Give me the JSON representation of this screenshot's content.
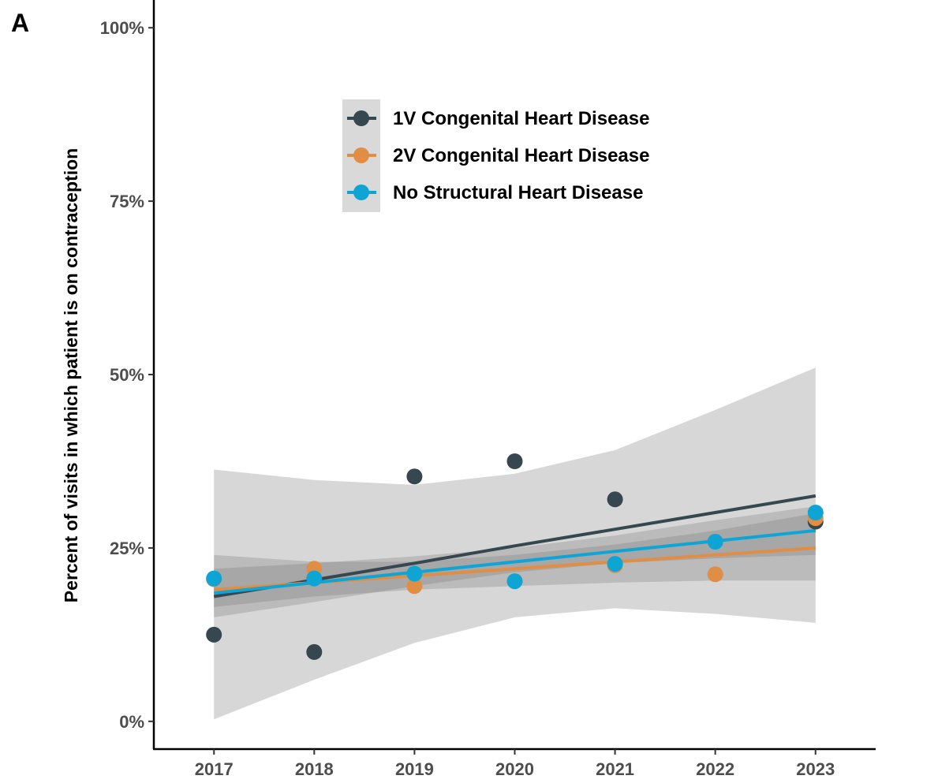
{
  "panel_label": "A",
  "chart_data": {
    "type": "scatter",
    "title": "",
    "xlabel": "",
    "ylabel": "Percent of visits in which patient is on contraception",
    "x": [
      2017,
      2018,
      2019,
      2020,
      2021,
      2022,
      2023
    ],
    "x_tick_labels": [
      "2017",
      "2018",
      "2019",
      "2020",
      "2021",
      "2022",
      "2023"
    ],
    "xlim": [
      2016.4,
      2023.6
    ],
    "ylim": [
      -0.04,
      1.04
    ],
    "y_ticks": [
      0,
      0.25,
      0.5,
      0.75,
      1.0
    ],
    "y_tick_labels": [
      "0%",
      "25%",
      "50%",
      "75%",
      "100%"
    ],
    "grid": false,
    "legend_position": "top-center",
    "series": [
      {
        "name": "1V Congenital Heart Disease",
        "color": "#37474f",
        "values": [
          0.125,
          0.1,
          0.353,
          0.375,
          0.32,
          null,
          0.288
        ],
        "trend": [
          0.18,
          0.204,
          0.228,
          0.253,
          0.277,
          0.301,
          0.325
        ],
        "ci_lower": [
          0.003,
          0.06,
          0.113,
          0.15,
          0.163,
          0.155,
          0.142
        ],
        "ci_upper": [
          0.363,
          0.348,
          0.341,
          0.357,
          0.391,
          0.449,
          0.51
        ]
      },
      {
        "name": "2V Congenital Heart Disease",
        "color": "#e08e45",
        "values": [
          0.205,
          0.22,
          0.195,
          0.202,
          0.225,
          0.212,
          0.293
        ],
        "trend": [
          0.19,
          0.2,
          0.21,
          0.22,
          0.23,
          0.24,
          0.25
        ],
        "ci_lower": [
          0.165,
          0.18,
          0.19,
          0.195,
          0.2,
          0.203,
          0.203
        ],
        "ci_upper": [
          0.24,
          0.23,
          0.23,
          0.24,
          0.255,
          0.275,
          0.3
        ]
      },
      {
        "name": "No Structural Heart Disease",
        "color": "#0ea5d4",
        "values": [
          0.206,
          0.206,
          0.213,
          0.202,
          0.227,
          0.259,
          0.301
        ],
        "trend": [
          0.185,
          0.2,
          0.215,
          0.23,
          0.245,
          0.26,
          0.275
        ],
        "ci_lower": [
          0.15,
          0.172,
          0.195,
          0.215,
          0.228,
          0.235,
          0.24
        ],
        "ci_upper": [
          0.22,
          0.228,
          0.238,
          0.25,
          0.268,
          0.29,
          0.31
        ]
      }
    ]
  }
}
